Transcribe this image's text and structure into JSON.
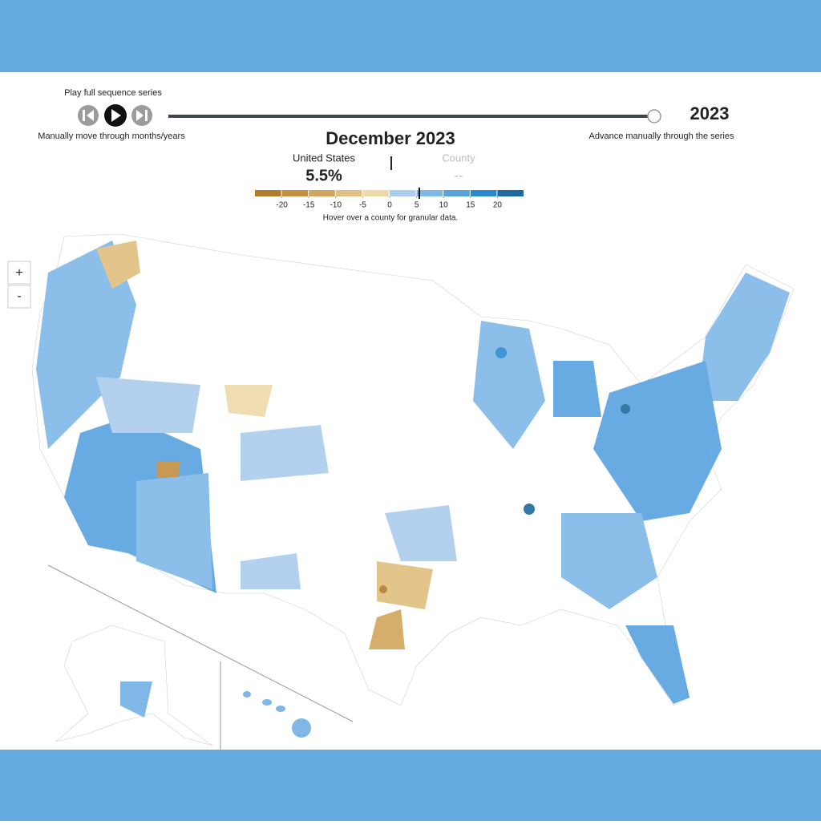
{
  "controls": {
    "play_label": "Play full sequence series",
    "manual_label": "Manually move through months/years",
    "year": "2023",
    "advance_label": "Advance manually through the series"
  },
  "header": {
    "period": "December 2023"
  },
  "summary": {
    "national_label": "United States",
    "national_value": "5.5%",
    "county_label": "County",
    "county_value": "--"
  },
  "legend": {
    "colors": [
      "#b07d2e",
      "#c38f42",
      "#d2a55c",
      "#e0bf80",
      "#efd9aa",
      "#abcdee",
      "#7fb7e7",
      "#58a2df",
      "#2b8acd",
      "#1d6a9e"
    ],
    "lim": [
      -25,
      25
    ],
    "ticks": [
      -20,
      -15,
      -10,
      -5,
      0,
      5,
      10,
      15,
      20
    ],
    "marker": 5.5,
    "note": "Hover over a county for granular data."
  },
  "zoom": {
    "in": "+",
    "out": "-"
  }
}
